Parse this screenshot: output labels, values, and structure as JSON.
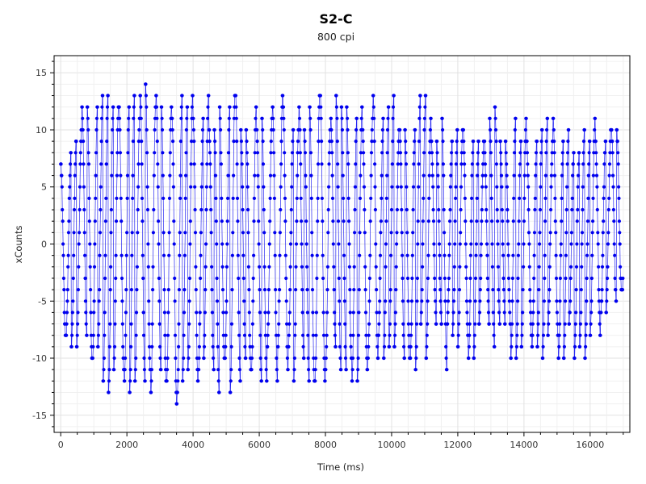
{
  "chart_data": {
    "type": "scatter",
    "title": "S2-C",
    "subtitle": "800 cpi",
    "xlabel": "Time (ms)",
    "ylabel": "xCounts",
    "xlim": [
      -200,
      17200
    ],
    "ylim": [
      -16.5,
      16.5
    ],
    "x_ticks": [
      0,
      2000,
      4000,
      6000,
      8000,
      10000,
      12000,
      14000,
      16000
    ],
    "y_ticks": [
      -15,
      -10,
      -5,
      0,
      5,
      10,
      15
    ],
    "grid": true,
    "legend": "none",
    "series": [
      {
        "color": "#0000ee",
        "style": "line+markers",
        "x_start": 0,
        "x_end": 17000,
        "cycle_period_ms": 160,
        "min_range": [
          -15,
          -4
        ],
        "max_range": [
          5,
          15
        ],
        "envelope": [
          {
            "x": 0,
            "max": 9,
            "min": -7
          },
          {
            "x": 1000,
            "max": 12,
            "min": -11
          },
          {
            "x": 2000,
            "max": 13,
            "min": -13
          },
          {
            "x": 3000,
            "max": 13,
            "min": -13
          },
          {
            "x": 4000,
            "max": 12,
            "min": -12
          },
          {
            "x": 6000,
            "max": 12,
            "min": -11
          },
          {
            "x": 8000,
            "max": 12,
            "min": -11
          },
          {
            "x": 10000,
            "max": 12,
            "min": -10
          },
          {
            "x": 12000,
            "max": 11,
            "min": -9
          },
          {
            "x": 14000,
            "max": 10,
            "min": -9
          },
          {
            "x": 16000,
            "max": 10,
            "min": -9
          },
          {
            "x": 17000,
            "max": 8,
            "min": -6
          }
        ]
      }
    ]
  }
}
